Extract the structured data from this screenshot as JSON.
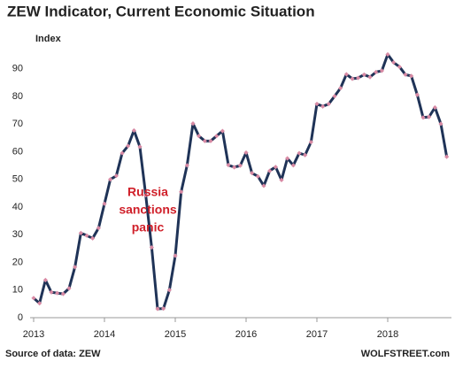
{
  "chart_data": {
    "type": "line",
    "title": "ZEW Indicator, Current Economic Situation",
    "y_label": "Index",
    "source": "Source of data: ZEW",
    "credit": "WOLFSTREET.com",
    "annotation": [
      "Russia",
      "sanctions",
      "panic"
    ],
    "annotation_color": "#d0202a",
    "x": [
      2013,
      2013.083,
      2013.167,
      2013.25,
      2013.333,
      2013.417,
      2013.5,
      2013.583,
      2013.667,
      2013.75,
      2013.833,
      2013.917,
      2014,
      2014.083,
      2014.167,
      2014.25,
      2014.333,
      2014.417,
      2014.5,
      2014.583,
      2014.667,
      2014.75,
      2014.833,
      2014.917,
      2015,
      2015.083,
      2015.167,
      2015.25,
      2015.333,
      2015.417,
      2015.5,
      2015.583,
      2015.667,
      2015.75,
      2015.833,
      2015.917,
      2016,
      2016.083,
      2016.167,
      2016.25,
      2016.333,
      2016.417,
      2016.5,
      2016.583,
      2016.667,
      2016.75,
      2016.833,
      2016.917,
      2017,
      2017.083,
      2017.167,
      2017.25,
      2017.333,
      2017.417,
      2017.5,
      2017.583,
      2017.667,
      2017.75,
      2017.833,
      2017.917,
      2018,
      2018.083,
      2018.167,
      2018.25,
      2018.333,
      2018.417,
      2018.5,
      2018.583,
      2018.667,
      2018.75,
      2018.833
    ],
    "series": [
      {
        "name": "ZEW Current Situation",
        "color": "#1f3357",
        "marker_color": "#d88aa4",
        "values": [
          7.1,
          5.2,
          13.6,
          9.2,
          8.9,
          8.6,
          10.6,
          18.3,
          30.6,
          29.7,
          28.7,
          32.4,
          41.2,
          50.0,
          51.3,
          59.5,
          62.1,
          67.7,
          61.8,
          44.3,
          25.4,
          3.2,
          3.3,
          10.0,
          22.4,
          45.5,
          55.1,
          70.2,
          65.7,
          63.9,
          63.9,
          65.7,
          67.5,
          55.2,
          54.4,
          55.0,
          59.7,
          52.3,
          51.1,
          47.7,
          53.1,
          54.5,
          49.8,
          57.6,
          55.1,
          59.5,
          58.8,
          63.5,
          77.3,
          76.4,
          77.3,
          80.1,
          83.0,
          88.0,
          86.4,
          86.7,
          87.9,
          87.0,
          88.8,
          89.3,
          95.2,
          92.3,
          90.7,
          87.9,
          87.4,
          80.6,
          72.4,
          72.6,
          76.0,
          70.1,
          58.2
        ]
      }
    ],
    "xlim": [
      2012.95,
      2018.9
    ],
    "xticks": [
      2013,
      2014,
      2015,
      2016,
      2017,
      2018
    ],
    "ylim": [
      0,
      96
    ],
    "yticks": [
      0,
      10,
      20,
      30,
      40,
      50,
      60,
      70,
      80,
      90
    ],
    "grid": false
  }
}
